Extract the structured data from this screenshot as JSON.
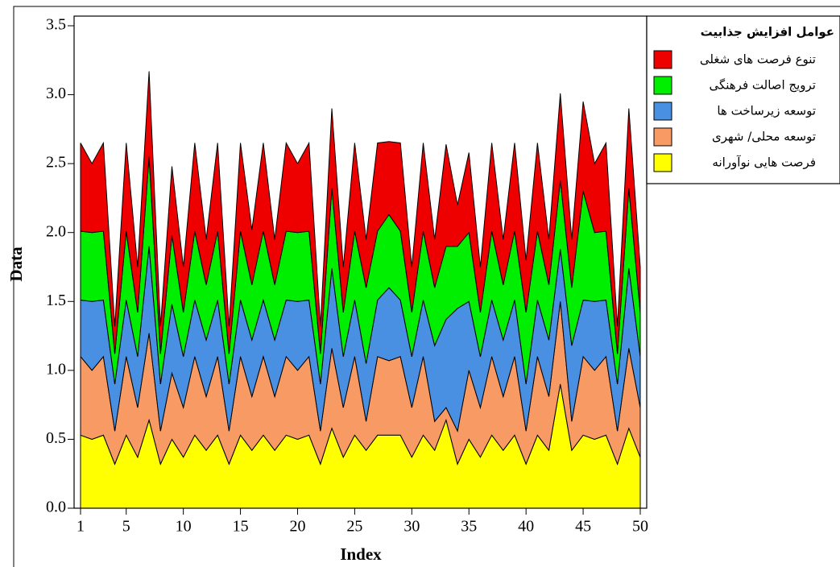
{
  "chart_data": {
    "type": "stacked_area",
    "x_label": "Index",
    "y_label": "Data",
    "legend_title": "عوامل افزایش جذابیت",
    "x": [
      1,
      2,
      3,
      4,
      5,
      6,
      7,
      8,
      9,
      10,
      11,
      12,
      13,
      14,
      15,
      16,
      17,
      18,
      19,
      20,
      21,
      22,
      23,
      24,
      25,
      26,
      27,
      28,
      29,
      30,
      31,
      32,
      33,
      34,
      35,
      36,
      37,
      38,
      39,
      40,
      41,
      42,
      43,
      44,
      45,
      46,
      47,
      48,
      49,
      50
    ],
    "xlim": [
      1,
      50
    ],
    "xticks": [
      1,
      5,
      10,
      15,
      20,
      25,
      30,
      35,
      40,
      45,
      50
    ],
    "ylim": [
      0,
      3.5
    ],
    "yticks": [
      {
        "value": 0,
        "label": "0.0"
      },
      0.5,
      {
        "value": 1,
        "label": "1.0"
      },
      1.5,
      {
        "value": 2,
        "label": "2.0"
      },
      2.5,
      {
        "value": 3,
        "label": "3.0"
      },
      3.5
    ],
    "series": [
      {
        "name": "فرصت هایی نوآورانه",
        "color": "#ffff00",
        "values": [
          0.53,
          0.5,
          0.53,
          0.32,
          0.53,
          0.37,
          0.64,
          0.32,
          0.5,
          0.37,
          0.53,
          0.42,
          0.53,
          0.32,
          0.53,
          0.42,
          0.53,
          0.42,
          0.53,
          0.5,
          0.53,
          0.32,
          0.58,
          0.37,
          0.53,
          0.42,
          0.53,
          0.53,
          0.53,
          0.37,
          0.53,
          0.42,
          0.64,
          0.32,
          0.5,
          0.37,
          0.53,
          0.42,
          0.53,
          0.32,
          0.53,
          0.42,
          0.9,
          0.42,
          0.53,
          0.5,
          0.53,
          0.32,
          0.58,
          0.37
        ]
      },
      {
        "name": "توسعه محلی/ شهری",
        "color": "#f79a64",
        "values": [
          0.57,
          0.5,
          0.57,
          0.24,
          0.57,
          0.36,
          0.63,
          0.24,
          0.48,
          0.36,
          0.57,
          0.39,
          0.57,
          0.24,
          0.57,
          0.39,
          0.57,
          0.39,
          0.57,
          0.5,
          0.57,
          0.24,
          0.58,
          0.36,
          0.57,
          0.21,
          0.57,
          0.54,
          0.57,
          0.36,
          0.57,
          0.21,
          0.09,
          0.24,
          0.5,
          0.36,
          0.57,
          0.39,
          0.57,
          0.24,
          0.57,
          0.39,
          0.6,
          0.21,
          0.57,
          0.5,
          0.57,
          0.24,
          0.58,
          0.36
        ]
      },
      {
        "name": "توسعه زیرساخت ها",
        "color": "#4a90e2",
        "values": [
          0.41,
          0.5,
          0.41,
          0.34,
          0.41,
          0.37,
          0.63,
          0.34,
          0.5,
          0.37,
          0.41,
          0.41,
          0.41,
          0.34,
          0.41,
          0.41,
          0.41,
          0.41,
          0.41,
          0.5,
          0.41,
          0.34,
          0.58,
          0.37,
          0.41,
          0.42,
          0.41,
          0.53,
          0.41,
          0.37,
          0.41,
          0.55,
          0.64,
          0.89,
          0.5,
          0.37,
          0.41,
          0.41,
          0.41,
          0.34,
          0.41,
          0.41,
          0.38,
          0.55,
          0.41,
          0.5,
          0.41,
          0.34,
          0.58,
          0.37
        ]
      },
      {
        "name": "ترویج اصالت فرهنگی",
        "color": "#00ee00",
        "values": [
          0.5,
          0.5,
          0.5,
          0.22,
          0.5,
          0.32,
          0.65,
          0.22,
          0.5,
          0.32,
          0.5,
          0.4,
          0.5,
          0.22,
          0.5,
          0.4,
          0.5,
          0.4,
          0.5,
          0.5,
          0.5,
          0.22,
          0.58,
          0.32,
          0.5,
          0.55,
          0.5,
          0.53,
          0.5,
          0.32,
          0.5,
          0.42,
          0.53,
          0.45,
          0.5,
          0.32,
          0.5,
          0.4,
          0.5,
          0.52,
          0.5,
          0.4,
          0.5,
          0.42,
          0.79,
          0.5,
          0.5,
          0.22,
          0.58,
          0.32
        ]
      },
      {
        "name": "تنوع فرصت های شغلی",
        "color": "#ee0000",
        "values": [
          0.64,
          0.5,
          0.64,
          0.2,
          0.64,
          0.33,
          0.62,
          0.2,
          0.5,
          0.33,
          0.64,
          0.33,
          0.64,
          0.2,
          0.64,
          0.4,
          0.64,
          0.33,
          0.64,
          0.5,
          0.64,
          0.2,
          0.58,
          0.33,
          0.64,
          0.35,
          0.64,
          0.53,
          0.64,
          0.33,
          0.64,
          0.35,
          0.74,
          0.3,
          0.58,
          0.33,
          0.64,
          0.33,
          0.64,
          0.38,
          0.64,
          0.33,
          0.63,
          0.35,
          0.65,
          0.5,
          0.64,
          0.2,
          0.58,
          0.33
        ]
      }
    ]
  }
}
